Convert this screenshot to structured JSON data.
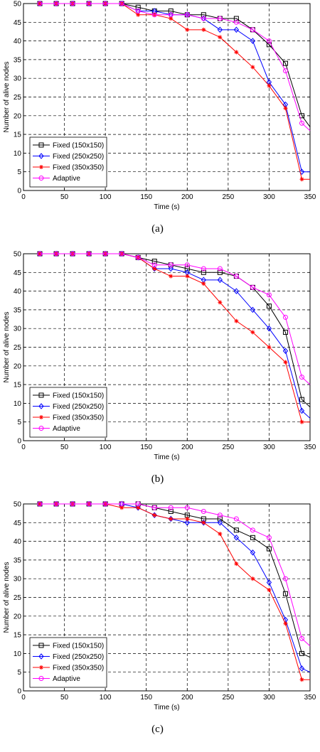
{
  "chart_data": [
    {
      "type": "line",
      "caption": "(a)",
      "xlabel": "Time (s)",
      "ylabel": "Number of alive nodes",
      "xlim": [
        0,
        350
      ],
      "ylim": [
        0,
        50
      ],
      "xticks": [
        0,
        50,
        100,
        150,
        200,
        250,
        300,
        350
      ],
      "yticks": [
        0,
        5,
        10,
        15,
        20,
        25,
        30,
        35,
        40,
        45,
        50
      ],
      "grid": true,
      "legend_position": "bottom-left",
      "x": [
        20,
        40,
        60,
        80,
        100,
        120,
        140,
        160,
        180,
        200,
        220,
        240,
        260,
        280,
        300,
        320,
        340,
        350
      ],
      "series": [
        {
          "name": "Fixed (150x150)",
          "color": "#000000",
          "marker": "square",
          "values": [
            50,
            50,
            50,
            50,
            50,
            50,
            49,
            48,
            48,
            47,
            47,
            46,
            46,
            43,
            39,
            34,
            20,
            17
          ]
        },
        {
          "name": "Fixed (250x250)",
          "color": "#0000ff",
          "marker": "diamond",
          "values": [
            50,
            50,
            50,
            50,
            50,
            50,
            48,
            48,
            47,
            47,
            46,
            43,
            43,
            40,
            29,
            23,
            5,
            5
          ]
        },
        {
          "name": "Fixed (350x350)",
          "color": "#ff0000",
          "marker": "star",
          "values": [
            50,
            50,
            50,
            50,
            50,
            50,
            47,
            47,
            46,
            43,
            43,
            41,
            37,
            33,
            28,
            22,
            3,
            3
          ]
        },
        {
          "name": "Adaptive",
          "color": "#ff00ff",
          "marker": "circle",
          "values": [
            50,
            50,
            50,
            50,
            50,
            50,
            48,
            47,
            47,
            47,
            46,
            46,
            45,
            43,
            40,
            32,
            18,
            16
          ]
        }
      ]
    },
    {
      "type": "line",
      "caption": "(b)",
      "xlabel": "Time (s)",
      "ylabel": "Number of alive nodes",
      "xlim": [
        0,
        350
      ],
      "ylim": [
        0,
        50
      ],
      "xticks": [
        0,
        50,
        100,
        150,
        200,
        250,
        300,
        350
      ],
      "yticks": [
        0,
        5,
        10,
        15,
        20,
        25,
        30,
        35,
        40,
        45,
        50
      ],
      "grid": true,
      "legend_position": "bottom-left",
      "x": [
        20,
        40,
        60,
        80,
        100,
        120,
        140,
        160,
        180,
        200,
        220,
        240,
        260,
        280,
        300,
        320,
        340,
        350
      ],
      "series": [
        {
          "name": "Fixed (150x150)",
          "color": "#000000",
          "marker": "square",
          "values": [
            50,
            50,
            50,
            50,
            50,
            50,
            49,
            48,
            47,
            46,
            45,
            45,
            44,
            41,
            36,
            29,
            11,
            9
          ]
        },
        {
          "name": "Fixed (250x250)",
          "color": "#0000ff",
          "marker": "diamond",
          "values": [
            50,
            50,
            50,
            50,
            50,
            50,
            49,
            46,
            46,
            45,
            43,
            43,
            40,
            35,
            30,
            24,
            8,
            6
          ]
        },
        {
          "name": "Fixed (350x350)",
          "color": "#ff0000",
          "marker": "star",
          "values": [
            50,
            50,
            50,
            50,
            50,
            50,
            49,
            46,
            44,
            44,
            42,
            37,
            32,
            29,
            25,
            21,
            5,
            5
          ]
        },
        {
          "name": "Adaptive",
          "color": "#ff00ff",
          "marker": "circle",
          "values": [
            50,
            50,
            50,
            50,
            50,
            50,
            49,
            47,
            47,
            47,
            46,
            46,
            44,
            41,
            39,
            33,
            17,
            15
          ]
        }
      ]
    },
    {
      "type": "line",
      "caption": "(c)",
      "xlabel": "Time (s)",
      "ylabel": "Number of alive nodes",
      "xlim": [
        0,
        350
      ],
      "ylim": [
        0,
        50
      ],
      "xticks": [
        0,
        50,
        100,
        150,
        200,
        250,
        300,
        350
      ],
      "yticks": [
        0,
        5,
        10,
        15,
        20,
        25,
        30,
        35,
        40,
        45,
        50
      ],
      "grid": true,
      "legend_position": "bottom-left",
      "x": [
        20,
        40,
        60,
        80,
        100,
        120,
        140,
        160,
        180,
        200,
        220,
        240,
        260,
        280,
        300,
        320,
        340,
        350
      ],
      "series": [
        {
          "name": "Fixed (150x150)",
          "color": "#000000",
          "marker": "square",
          "values": [
            50,
            50,
            50,
            50,
            50,
            50,
            50,
            49,
            48,
            47,
            46,
            46,
            43,
            41,
            38,
            26,
            10,
            9
          ]
        },
        {
          "name": "Fixed (250x250)",
          "color": "#0000ff",
          "marker": "diamond",
          "values": [
            50,
            50,
            50,
            50,
            50,
            50,
            49,
            47,
            46,
            45,
            45,
            45,
            41,
            37,
            29,
            19,
            6,
            5
          ]
        },
        {
          "name": "Fixed (350x350)",
          "color": "#ff0000",
          "marker": "star",
          "values": [
            50,
            50,
            50,
            50,
            50,
            49,
            49,
            47,
            46,
            46,
            45,
            42,
            34,
            30,
            27,
            18,
            3,
            3
          ]
        },
        {
          "name": "Adaptive",
          "color": "#ff00ff",
          "marker": "circle",
          "values": [
            50,
            50,
            50,
            50,
            50,
            50,
            50,
            49,
            49,
            49,
            48,
            47,
            46,
            43,
            41,
            30,
            14,
            12
          ]
        }
      ]
    }
  ]
}
